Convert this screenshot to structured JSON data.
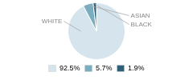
{
  "chart_data": {
    "type": "pie",
    "categories": [
      "WHITE",
      "ASIAN",
      "BLACK"
    ],
    "values": [
      92.5,
      5.7,
      1.9
    ],
    "value_labels": [
      "92.5%",
      "5.7%",
      "1.9%"
    ],
    "colors": [
      "#d6e4ee",
      "#7aadbe",
      "#2e607a"
    ],
    "legend": "bottom"
  }
}
